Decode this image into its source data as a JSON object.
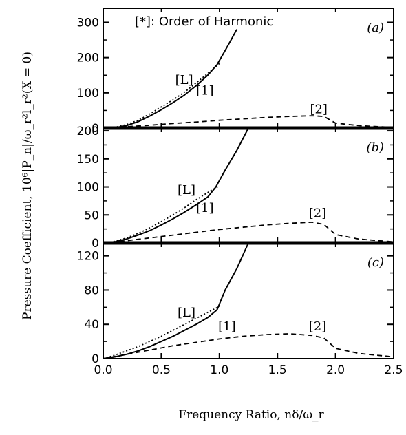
{
  "chart_data": {
    "type": "line",
    "figure_note": "[*]: Order of Harmonic",
    "xlabel": "Frequency Ratio, nδ/ω_r",
    "ylabel": "Pressure Coefficient, 10⁶|P_n|/ω_r²l_r²(X = 0)",
    "xlim": [
      0,
      2.5
    ],
    "xticks": [
      0.0,
      0.5,
      1.0,
      1.5,
      2.0,
      2.5
    ],
    "xtick_labels": [
      "0.0",
      "0.5",
      "1.0",
      "1.5",
      "2.0",
      "2.5"
    ],
    "series_styles": {
      "L": "dotted",
      "1": "solid",
      "2": "dashed"
    },
    "panels": [
      {
        "tag": "(a)",
        "ylim": [
          0,
          340
        ],
        "yticks": [
          0,
          100,
          200,
          300
        ],
        "ytick_labels": [
          "0",
          "100",
          "200",
          "300"
        ],
        "labels": [
          {
            "text": "[L]",
            "x": 0.62,
            "y": 125
          },
          {
            "text": "[1]",
            "x": 0.8,
            "y": 95
          },
          {
            "text": "[2]",
            "x": 1.78,
            "y": 42
          }
        ],
        "series": [
          {
            "label": "L",
            "x": [
              0,
              0.1,
              0.2,
              0.3,
              0.4,
              0.5,
              0.6,
              0.7,
              0.8,
              0.9,
              1.0
            ],
            "y": [
              0,
              2,
              10,
              22,
              40,
              60,
              80,
              102,
              128,
              155,
              183
            ]
          },
          {
            "label": "1",
            "x": [
              0,
              0.1,
              0.2,
              0.3,
              0.4,
              0.5,
              0.6,
              0.7,
              0.8,
              0.9,
              0.98,
              1.05,
              1.1,
              1.15
            ],
            "y": [
              0,
              1,
              7,
              18,
              34,
              52,
              72,
              94,
              120,
              150,
              180,
              220,
              250,
              280
            ]
          },
          {
            "label": "2",
            "x": [
              0,
              0.2,
              0.4,
              0.6,
              0.8,
              1.0,
              1.2,
              1.4,
              1.6,
              1.8,
              1.9,
              2.0,
              2.2,
              2.5
            ],
            "y": [
              0,
              4,
              8,
              13,
              17,
              22,
              26,
              30,
              33,
              35,
              33,
              14,
              7,
              2
            ]
          }
        ]
      },
      {
        "tag": "(b)",
        "ylim": [
          0,
          205
        ],
        "yticks": [
          0,
          50,
          100,
          150,
          200
        ],
        "ytick_labels": [
          "0",
          "50",
          "100",
          "150",
          "200"
        ],
        "labels": [
          {
            "text": "[L]",
            "x": 0.64,
            "y": 87
          },
          {
            "text": "[1]",
            "x": 0.8,
            "y": 55
          },
          {
            "text": "[2]",
            "x": 1.77,
            "y": 46
          }
        ],
        "series": [
          {
            "label": "L",
            "x": [
              0,
              0.1,
              0.2,
              0.3,
              0.4,
              0.5,
              0.6,
              0.7,
              0.8,
              0.9,
              1.0
            ],
            "y": [
              0,
              3,
              9,
              17,
              27,
              38,
              50,
              63,
              77,
              90,
              102
            ]
          },
          {
            "label": "1",
            "x": [
              0,
              0.1,
              0.2,
              0.3,
              0.4,
              0.5,
              0.6,
              0.7,
              0.8,
              0.9,
              0.97,
              1.05,
              1.15,
              1.25
            ],
            "y": [
              0,
              2,
              7,
              14,
              22,
              32,
              43,
              55,
              68,
              82,
              100,
              130,
              165,
              205
            ]
          },
          {
            "label": "2",
            "x": [
              0,
              0.2,
              0.4,
              0.6,
              0.8,
              1.0,
              1.2,
              1.4,
              1.6,
              1.8,
              1.9,
              2.0,
              2.2,
              2.5
            ],
            "y": [
              0,
              4,
              9,
              14,
              19,
              24,
              28,
              32,
              35,
              37,
              33,
              15,
              7,
              2
            ]
          }
        ]
      },
      {
        "tag": "(c)",
        "ylim": [
          0,
          135
        ],
        "yticks": [
          0,
          40,
          80,
          120
        ],
        "ytick_labels": [
          "0",
          "40",
          "80",
          "120"
        ],
        "labels": [
          {
            "text": "[L]",
            "x": 0.64,
            "y": 49
          },
          {
            "text": "[1]",
            "x": 0.99,
            "y": 33
          },
          {
            "text": "[2]",
            "x": 1.77,
            "y": 33
          }
        ],
        "series": [
          {
            "label": "L",
            "x": [
              0,
              0.1,
              0.2,
              0.3,
              0.4,
              0.5,
              0.6,
              0.7,
              0.8,
              0.9,
              1.0
            ],
            "y": [
              0,
              4,
              9,
              14,
              20,
              26,
              33,
              40,
              47,
              54,
              61
            ]
          },
          {
            "label": "1",
            "x": [
              0,
              0.1,
              0.2,
              0.3,
              0.4,
              0.5,
              0.6,
              0.7,
              0.8,
              0.9,
              0.98,
              1.05,
              1.15,
              1.25
            ],
            "y": [
              0,
              2,
              5,
              9,
              14,
              20,
              26,
              33,
              40,
              48,
              57,
              80,
              105,
              135
            ]
          },
          {
            "label": "2",
            "x": [
              0,
              0.2,
              0.4,
              0.6,
              0.8,
              1.0,
              1.2,
              1.4,
              1.6,
              1.8,
              1.9,
              2.0,
              2.2,
              2.5
            ],
            "y": [
              0,
              5,
              10,
              15,
              19,
              23,
              26,
              28,
              29,
              27,
              24,
              12,
              6,
              2
            ]
          }
        ]
      }
    ]
  }
}
